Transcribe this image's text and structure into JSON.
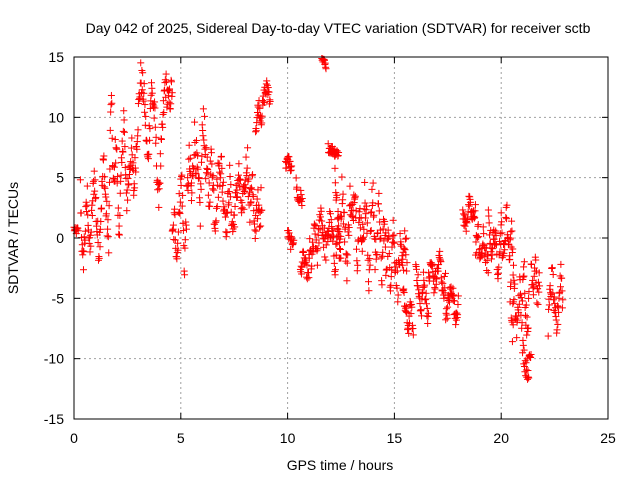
{
  "chart_data": {
    "type": "scatter",
    "title": "Day 042 of 2025, Sidereal Day-to-day VTEC variation (SDTVAR) for receiver sctb",
    "xlabel": "GPS time / hours",
    "ylabel": "SDTVAR / TECUs",
    "xlim": [
      0,
      25
    ],
    "ylim": [
      -15,
      15
    ],
    "xticks": [
      0,
      5,
      10,
      15,
      20,
      25
    ],
    "yticks": [
      -15,
      -10,
      -5,
      0,
      5,
      10,
      15
    ],
    "xtick_labels": [
      "0",
      "5",
      "10",
      "15",
      "20",
      "25"
    ],
    "ytick_labels": [
      "-15",
      "-10",
      "-5",
      "0",
      "5",
      "10",
      "15"
    ],
    "grid": true,
    "marker": "+",
    "color": "#ff0000",
    "series": [
      {
        "name": "SDTVAR",
        "segments": [
          {
            "x_start": 0.0,
            "x_end": 0.2,
            "y": [
              0.8,
              0.5,
              0.6,
              0.7
            ],
            "jitter": 0.3
          },
          {
            "x_start": 0.3,
            "x_end": 1.5,
            "y": [
              4.0,
              -2.5,
              0.5,
              3.5,
              -1.5,
              2.0,
              5.5,
              1.0,
              -1.0,
              3.0,
              6.5,
              2.5
            ],
            "jitter": 1.4
          },
          {
            "x_start": 1.5,
            "x_end": 2.8,
            "y": [
              2.5,
              -0.5,
              12.0,
              3.5,
              8.5,
              0.5,
              4.5,
              10.5,
              3.0,
              5.0,
              7.5,
              4.0
            ],
            "jitter": 1.6
          },
          {
            "x_start": 2.8,
            "x_end": 4.6,
            "y": [
              4.0,
              9.0,
              13.5,
              11.5,
              6.0,
              12.5,
              10.0,
              3.0,
              8.0,
              13.0,
              11.0,
              12.5
            ],
            "jitter": 1.3
          },
          {
            "x_start": 4.6,
            "x_end": 5.5,
            "y": [
              -0.5,
              1.5,
              -1.5,
              3.0,
              5.0,
              -2.5,
              2.5,
              6.5,
              4.0
            ],
            "jitter": 1.5
          },
          {
            "x_start": 5.5,
            "x_end": 7.0,
            "y": [
              3.0,
              8.5,
              5.5,
              2.0,
              10.5,
              6.0,
              3.5,
              7.0,
              1.5,
              4.5,
              6.5,
              3.5
            ],
            "jitter": 1.8
          },
          {
            "x_start": 7.0,
            "x_end": 8.0,
            "y": [
              3.5,
              1.0,
              5.0,
              0.5,
              3.0,
              5.5,
              2.0,
              4.0
            ],
            "jitter": 1.3
          },
          {
            "x_start": 8.0,
            "x_end": 8.8,
            "y": [
              4.5,
              7.0,
              2.0,
              5.5,
              -0.5,
              3.5,
              1.0,
              4.0
            ],
            "jitter": 1.5
          },
          {
            "x_start": 8.5,
            "x_end": 9.2,
            "y": [
              9.0,
              11.0,
              10.0,
              12.0,
              12.5,
              11.5
            ],
            "jitter": 0.8
          },
          {
            "x_start": 9.9,
            "x_end": 10.2,
            "y": [
              6.0,
              6.5,
              5.5
            ],
            "jitter": 0.5
          },
          {
            "x_start": 10.0,
            "x_end": 10.3,
            "y": [
              0.5,
              -0.5,
              0.0
            ],
            "jitter": 0.5
          },
          {
            "x_start": 10.4,
            "x_end": 10.7,
            "y": [
              4.5,
              3.0,
              3.5,
              3.0
            ],
            "jitter": 0.6
          },
          {
            "x_start": 10.6,
            "x_end": 11.0,
            "y": [
              -3.0,
              -1.5,
              -2.5,
              -3.5
            ],
            "jitter": 0.6
          },
          {
            "x_start": 11.0,
            "x_end": 12.5,
            "y": [
              -1.0,
              -2.0,
              0.5,
              -1.5,
              2.5,
              0.0,
              -1.0,
              1.5,
              0.0,
              -2.0,
              1.0,
              -0.5
            ],
            "jitter": 1.3
          },
          {
            "x_start": 11.6,
            "x_end": 11.8,
            "y": [
              14.5,
              14.8,
              13.8
            ],
            "jitter": 0.4
          },
          {
            "x_start": 11.9,
            "x_end": 12.4,
            "y": [
              7.5,
              7.0
            ],
            "jitter": 0.4
          },
          {
            "x_start": 12.2,
            "x_end": 13.5,
            "y": [
              6.5,
              2.0,
              -1.0,
              4.5,
              0.5,
              -2.5,
              3.5,
              1.0,
              5.0,
              -1.5,
              2.0,
              0.0
            ],
            "jitter": 1.5
          },
          {
            "x_start": 13.5,
            "x_end": 14.6,
            "y": [
              -1.0,
              3.5,
              1.5,
              -3.5,
              1.0,
              4.0,
              -2.0,
              0.5,
              3.0,
              -4.0,
              1.5,
              -1.0
            ],
            "jitter": 1.6
          },
          {
            "x_start": 14.6,
            "x_end": 15.6,
            "y": [
              -2.5,
              0.0,
              -3.5,
              1.0,
              -2.0,
              -4.0,
              -1.0,
              -3.0,
              0.5,
              -2.5
            ],
            "jitter": 1.4
          },
          {
            "x_start": 15.4,
            "x_end": 15.9,
            "y": [
              -4.5,
              -6.0,
              -7.5,
              -5.5,
              -8.5
            ],
            "jitter": 0.8
          },
          {
            "x_start": 16.0,
            "x_end": 16.6,
            "y": [
              -2.0,
              -4.0,
              -6.5,
              -3.5,
              -5.0,
              -7.0
            ],
            "jitter": 0.8
          },
          {
            "x_start": 16.6,
            "x_end": 17.4,
            "y": [
              -3.5,
              -2.0,
              -4.0,
              -3.0,
              -1.5,
              -4.5,
              -3.5
            ],
            "jitter": 0.9
          },
          {
            "x_start": 17.4,
            "x_end": 18.0,
            "y": [
              -7.0,
              -5.0,
              -4.0,
              -6.5,
              -5.5
            ],
            "jitter": 0.8
          },
          {
            "x_start": 18.2,
            "x_end": 18.8,
            "y": [
              2.0,
              1.0,
              3.0,
              1.5,
              2.5
            ],
            "jitter": 0.7
          },
          {
            "x_start": 18.8,
            "x_end": 19.4,
            "y": [
              -1.0,
              0.5,
              -2.0,
              0.0,
              -1.5,
              -2.5
            ],
            "jitter": 1.0
          },
          {
            "x_start": 19.4,
            "x_end": 20.0,
            "y": [
              1.5,
              -1.0,
              0.5,
              -2.5,
              1.0
            ],
            "jitter": 1.0
          },
          {
            "x_start": 20.0,
            "x_end": 20.6,
            "y": [
              1.0,
              -2.0,
              2.5,
              -1.0,
              0.5,
              -3.0
            ],
            "jitter": 1.3
          },
          {
            "x_start": 20.4,
            "x_end": 21.3,
            "y": [
              -3.0,
              -7.5,
              -5.0,
              -8.0,
              -4.0,
              -6.5,
              -2.5,
              -7.0,
              -5.5
            ],
            "jitter": 1.6
          },
          {
            "x_start": 21.0,
            "x_end": 21.4,
            "y": [
              -9.0,
              -10.5,
              -11.0,
              -9.5
            ],
            "jitter": 0.9
          },
          {
            "x_start": 21.4,
            "x_end": 21.8,
            "y": [
              -2.0,
              -4.0,
              -1.5,
              -5.5,
              -3.0
            ],
            "jitter": 1.2
          },
          {
            "x_start": 22.2,
            "x_end": 22.9,
            "y": [
              -7.0,
              -4.5,
              -3.0,
              -6.5,
              -7.5,
              -5.0,
              -2.5,
              -6.0
            ],
            "jitter": 1.2
          }
        ]
      }
    ]
  }
}
